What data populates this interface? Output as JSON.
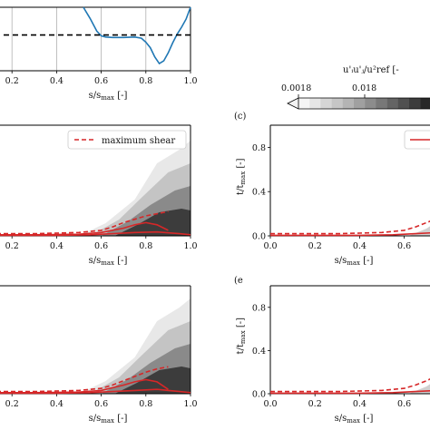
{
  "colors": {
    "blue": "#1f77b4",
    "red": "#d62728",
    "black": "#000000",
    "grid": "#b0b0b0"
  },
  "colorbar": {
    "label": "u'ᵢu'ⱼ/u²ref [-",
    "ticks": [
      "0.0018",
      "0.018"
    ]
  },
  "xlabel_text": "s/s",
  "xlabel_sub": "max",
  "xlabel_tail": " [-]",
  "ylabel_text": "t/t",
  "ylabel_sub": "max",
  "ylabel_tail": " [-]",
  "panel_labels": {
    "c": "(c)",
    "e": "(e"
  },
  "legend": {
    "maximum_shear": "maximum shear"
  },
  "chart_data": [
    {
      "id": "top-line",
      "type": "line",
      "xlim": [
        0.0,
        1.0
      ],
      "xticks": [
        "0.2",
        "0.4",
        "0.6",
        "0.8",
        "1.0"
      ],
      "grid": true,
      "series": [
        {
          "style": "solid-blue",
          "x": [
            0.52,
            0.55,
            0.58,
            0.6,
            0.62,
            0.65,
            0.7,
            0.75,
            0.78,
            0.8,
            0.82,
            0.84,
            0.86,
            0.88,
            0.9,
            0.92,
            0.94,
            0.96,
            0.98,
            1.0
          ],
          "y": [
            1.0,
            0.72,
            0.4,
            0.28,
            0.25,
            0.24,
            0.24,
            0.25,
            0.22,
            0.12,
            -0.02,
            -0.25,
            -0.42,
            -0.35,
            -0.15,
            0.1,
            0.32,
            0.5,
            0.7,
            1.0
          ]
        },
        {
          "style": "dashed-black",
          "x": [
            0.0,
            1.0
          ],
          "y": [
            0.3,
            0.3
          ]
        }
      ]
    },
    {
      "id": "mid-left",
      "type": "line",
      "xlim": [
        0.0,
        1.0
      ],
      "ylim": [
        0.0,
        1.0
      ],
      "xticks": [
        "0.2",
        "0.4",
        "0.6",
        "0.8",
        "1.0"
      ],
      "legend": "top-right",
      "series": [
        {
          "style": "dashed-red",
          "x": [
            0.0,
            0.3,
            0.5,
            0.6,
            0.65,
            0.7,
            0.75,
            0.8,
            0.85,
            0.9
          ],
          "y": [
            0.02,
            0.02,
            0.03,
            0.05,
            0.08,
            0.12,
            0.15,
            0.18,
            0.2,
            0.22
          ]
        },
        {
          "style": "solid-red",
          "x": [
            0.0,
            0.3,
            0.5,
            0.6,
            0.7,
            0.75,
            0.8,
            0.85,
            0.9
          ],
          "y": [
            0.01,
            0.01,
            0.015,
            0.03,
            0.07,
            0.1,
            0.12,
            0.1,
            0.05
          ]
        },
        {
          "style": "solid-red",
          "x": [
            0.0,
            0.4,
            0.55,
            0.65,
            0.75,
            0.85,
            0.95,
            1.0
          ],
          "y": [
            0.005,
            0.005,
            0.01,
            0.02,
            0.03,
            0.035,
            0.02,
            0.01
          ]
        }
      ]
    },
    {
      "id": "bottom-left",
      "type": "line",
      "xlim": [
        0.0,
        1.0
      ],
      "ylim": [
        0.0,
        1.0
      ],
      "xticks": [
        "0.2",
        "0.4",
        "0.6",
        "0.8",
        "1.0"
      ],
      "series": [
        {
          "style": "dashed-red",
          "x": [
            0.0,
            0.3,
            0.5,
            0.6,
            0.65,
            0.7,
            0.75,
            0.8,
            0.85,
            0.9
          ],
          "y": [
            0.02,
            0.02,
            0.03,
            0.05,
            0.08,
            0.12,
            0.16,
            0.2,
            0.23,
            0.25
          ]
        },
        {
          "style": "solid-red",
          "x": [
            0.0,
            0.3,
            0.5,
            0.6,
            0.7,
            0.75,
            0.8,
            0.85,
            0.9
          ],
          "y": [
            0.01,
            0.01,
            0.015,
            0.03,
            0.08,
            0.11,
            0.13,
            0.11,
            0.04
          ]
        },
        {
          "style": "solid-red",
          "x": [
            0.0,
            0.4,
            0.55,
            0.65,
            0.75,
            0.85,
            0.95,
            1.0
          ],
          "y": [
            0.005,
            0.005,
            0.01,
            0.02,
            0.03,
            0.04,
            0.02,
            0.01
          ]
        }
      ]
    },
    {
      "id": "mid-right",
      "type": "line",
      "xlim": [
        0.0,
        1.0
      ],
      "ylim": [
        0.0,
        1.0
      ],
      "xticks": [
        "0.0",
        "0.2",
        "0.4",
        "0.6"
      ],
      "yticks": [
        "0.0",
        "0.4",
        "0.8"
      ],
      "series": [
        {
          "style": "dashed-red",
          "x": [
            0.0,
            0.3,
            0.5,
            0.6,
            0.65,
            0.7,
            0.75
          ],
          "y": [
            0.02,
            0.02,
            0.03,
            0.05,
            0.08,
            0.12,
            0.16
          ]
        },
        {
          "style": "solid-red",
          "x": [
            0.0,
            0.4,
            0.55,
            0.65,
            0.75
          ],
          "y": [
            0.005,
            0.005,
            0.01,
            0.02,
            0.03
          ]
        }
      ]
    },
    {
      "id": "bottom-right",
      "type": "line",
      "xlim": [
        0.0,
        1.0
      ],
      "ylim": [
        0.0,
        1.0
      ],
      "xticks": [
        "0.0",
        "0.2",
        "0.4",
        "0.6"
      ],
      "yticks": [
        "0.0",
        "0.4",
        "0.8"
      ],
      "series": [
        {
          "style": "dashed-red",
          "x": [
            0.0,
            0.3,
            0.5,
            0.6,
            0.65,
            0.7,
            0.75
          ],
          "y": [
            0.02,
            0.02,
            0.03,
            0.05,
            0.08,
            0.12,
            0.17
          ]
        },
        {
          "style": "solid-red",
          "x": [
            0.0,
            0.4,
            0.55,
            0.65,
            0.75
          ],
          "y": [
            0.005,
            0.005,
            0.01,
            0.02,
            0.03
          ]
        }
      ]
    }
  ]
}
